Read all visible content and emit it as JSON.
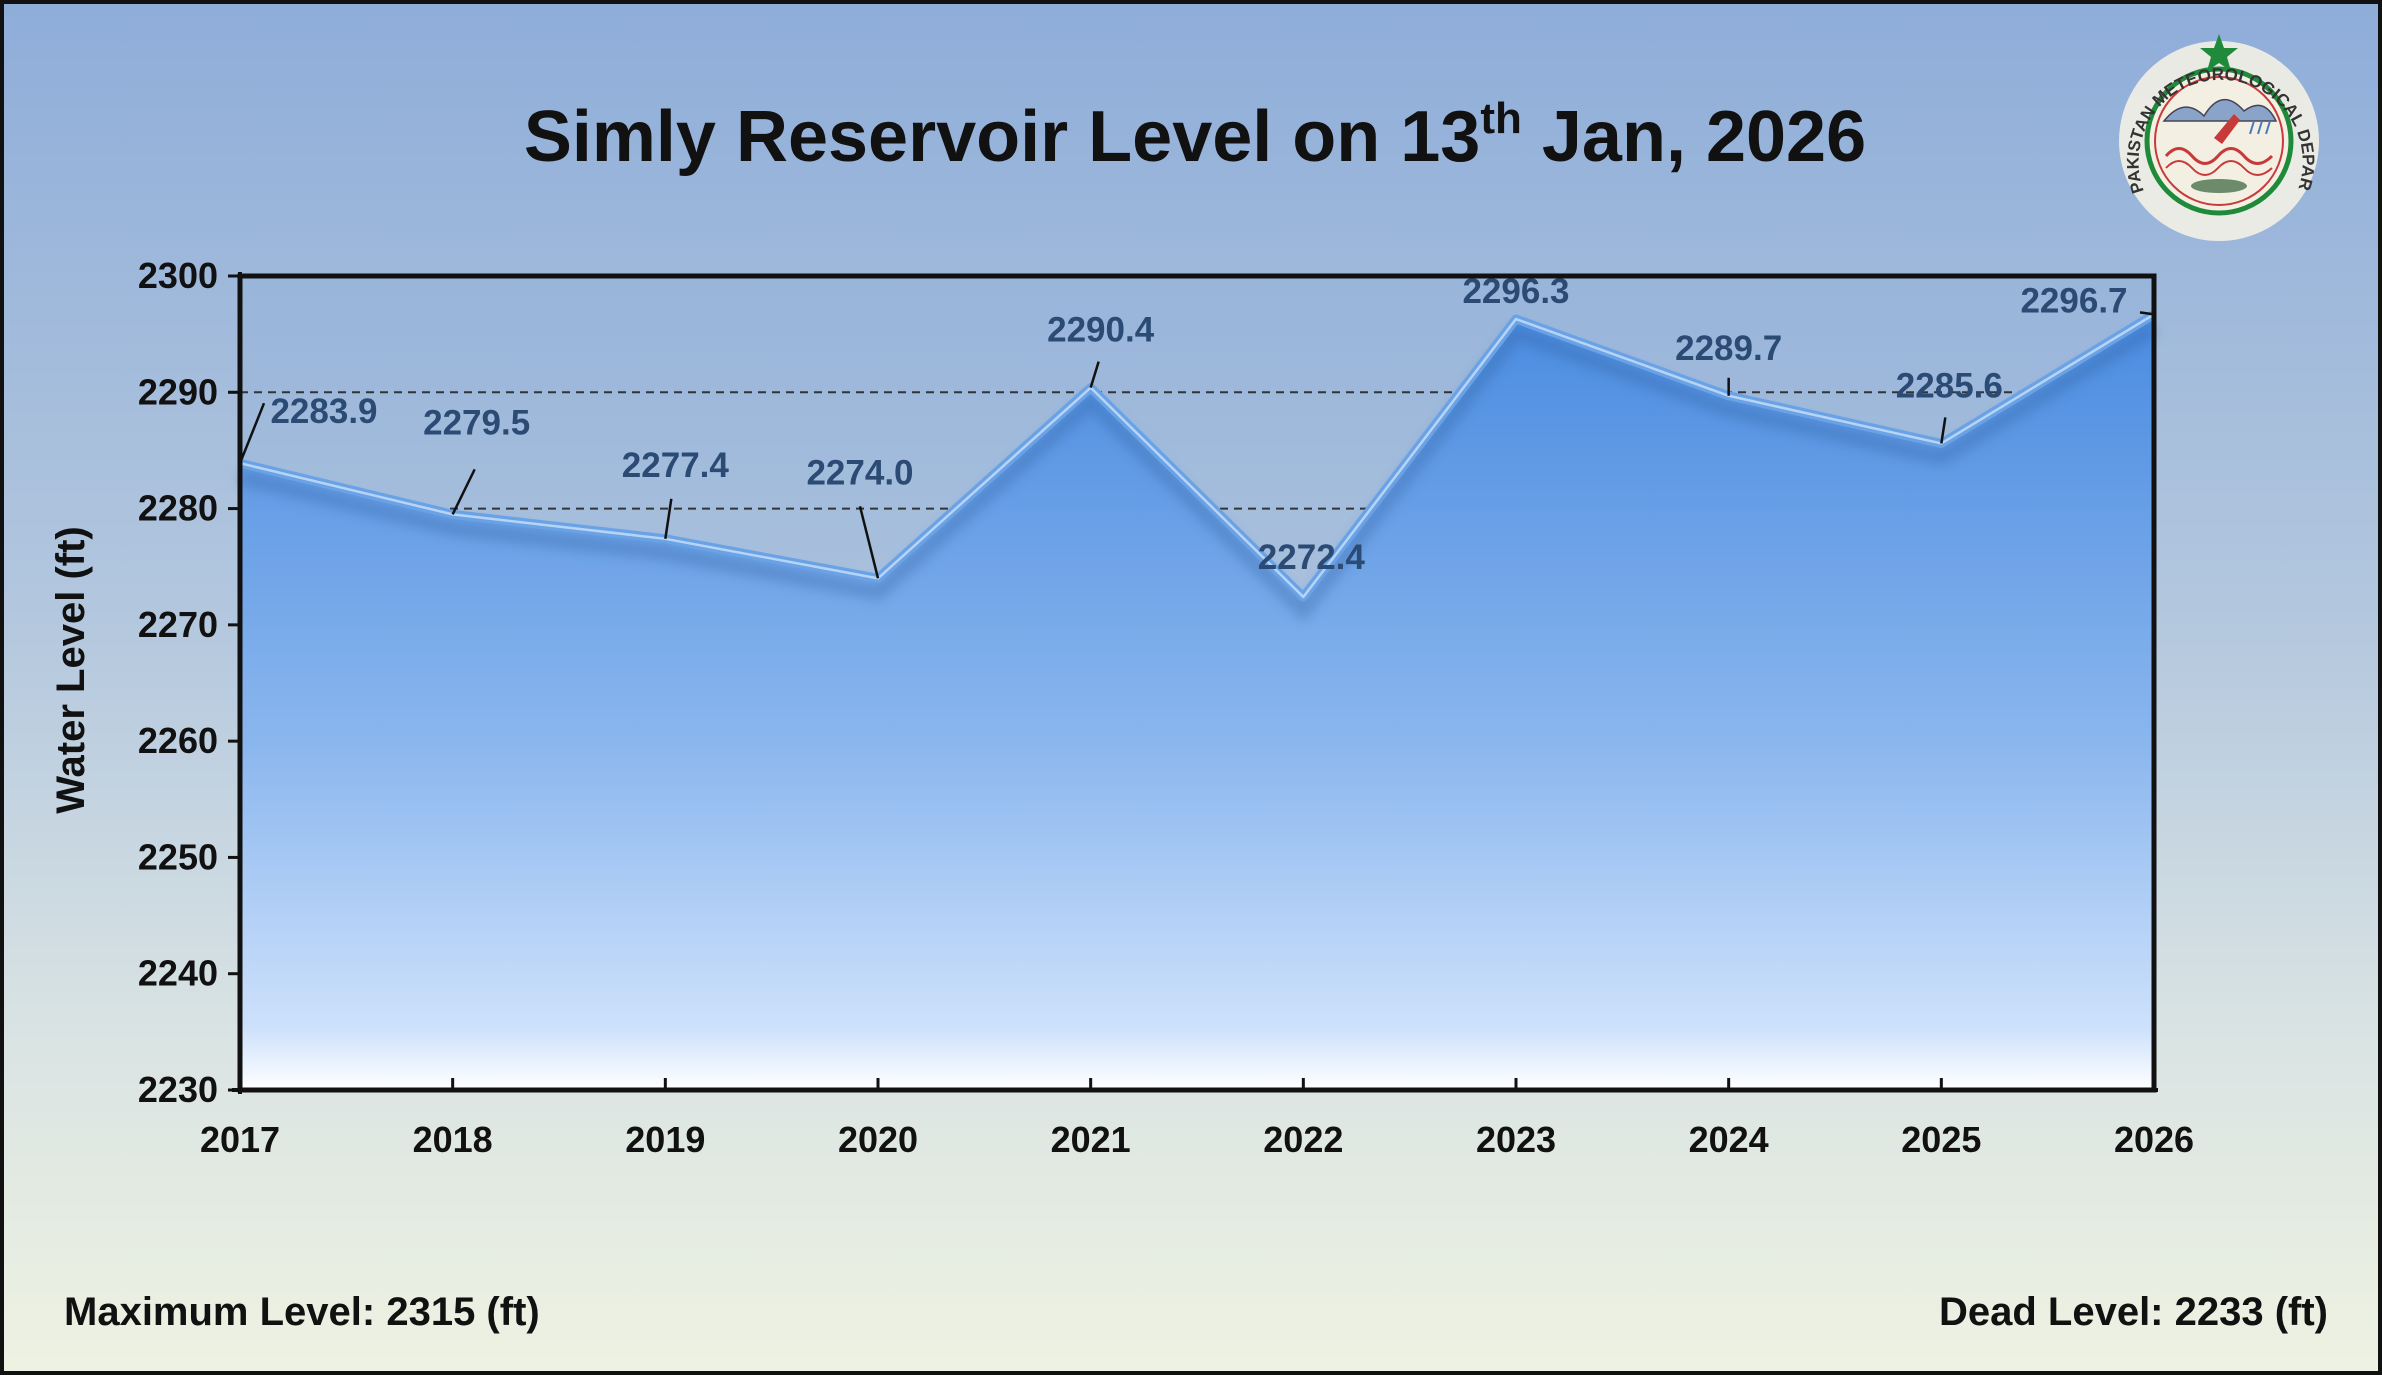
{
  "title": {
    "prefix": "Simly Reservoir Level on 13",
    "sup": "th",
    "suffix": " Jan, 2026"
  },
  "chart_data": {
    "type": "area",
    "title": "Simly Reservoir Level on 13th Jan, 2026",
    "xlabel": "",
    "ylabel": "Water Level (ft)",
    "categories": [
      "2017",
      "2018",
      "2019",
      "2020",
      "2021",
      "2022",
      "2023",
      "2024",
      "2025",
      "2026"
    ],
    "values": [
      2283.9,
      2279.5,
      2277.4,
      2274.0,
      2290.4,
      2272.4,
      2296.3,
      2289.7,
      2285.6,
      2296.7
    ],
    "data_labels": [
      "2283.9",
      "2279.5",
      "2277.4",
      "2274.0",
      "2290.4",
      "2272.4",
      "2296.3",
      "2289.7",
      "2285.6",
      "2296.7"
    ],
    "ylim": [
      2230,
      2300
    ],
    "yticks": [
      "2230",
      "2240",
      "2250",
      "2260",
      "2270",
      "2280",
      "2290",
      "2300"
    ],
    "gridlines": [
      2280,
      2290
    ],
    "grid": "dashed horizontal",
    "legend": "none"
  },
  "notes": {
    "max_level": "Maximum Level: 2315 (ft)",
    "dead_level": "Dead Level: 2233 (ft)"
  },
  "logo": {
    "text": "PAKISTAN METEOROLOGICAL DEPARTMENT",
    "icon": "pmd-seal-icon"
  },
  "colors": {
    "area_top": "#4a8be0",
    "area_bottom": "#cde1fb",
    "line": "#6aa2e6",
    "label": "#2b4b74",
    "accent_star": "#1f8a3a"
  }
}
